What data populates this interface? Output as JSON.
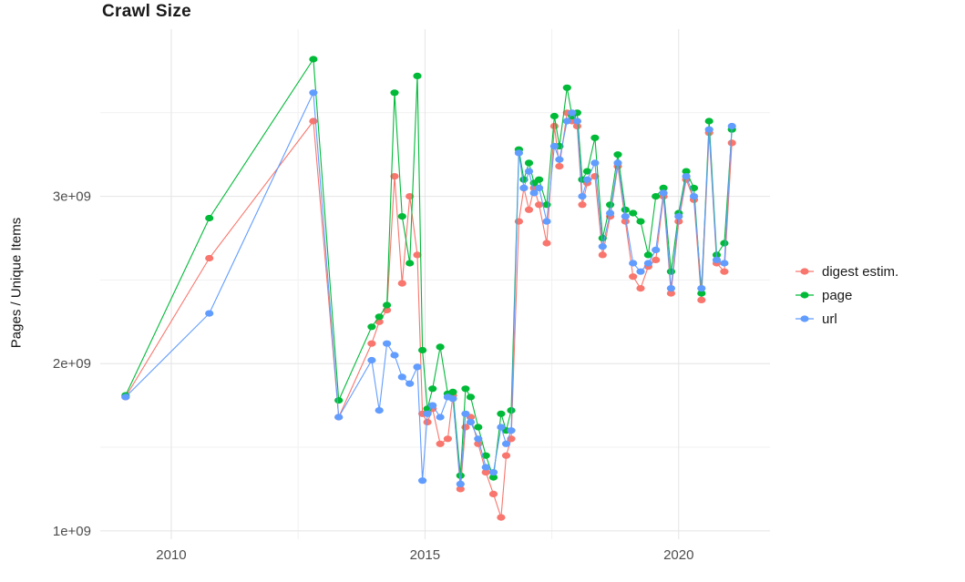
{
  "figure": {
    "background": "#ffffff",
    "panel_background": "#ffffff",
    "grid_major_color": "#e4e4e4",
    "grid_minor_color": "#f1f1f1"
  },
  "chart_data": {
    "type": "line",
    "title": "Crawl Size",
    "xlabel": "",
    "ylabel": "Pages / Unique Items",
    "legend_position": "right",
    "grid": true,
    "xlim": [
      2008.6,
      2021.8
    ],
    "ylim_e9": [
      0.95,
      4.0
    ],
    "xticks": [
      {
        "value": 2010,
        "label": "2010"
      },
      {
        "value": 2015,
        "label": "2015"
      },
      {
        "value": 2020,
        "label": "2020"
      }
    ],
    "yticks": [
      {
        "value_e9": 1,
        "label": "1e+09"
      },
      {
        "value_e9": 2,
        "label": "2e+09"
      },
      {
        "value_e9": 3,
        "label": "3e+09"
      }
    ],
    "x_minor": [
      2012.5,
      2017.5
    ],
    "y_minor_e9": [
      1.5,
      2.5,
      3.5
    ],
    "x": [
      2009.1,
      2010.75,
      2012.8,
      2013.3,
      2013.95,
      2014.1,
      2014.25,
      2014.4,
      2014.55,
      2014.7,
      2014.85,
      2014.95,
      2015.05,
      2015.15,
      2015.3,
      2015.45,
      2015.55,
      2015.7,
      2015.8,
      2015.9,
      2016.05,
      2016.2,
      2016.35,
      2016.5,
      2016.6,
      2016.7,
      2016.85,
      2016.95,
      2017.05,
      2017.15,
      2017.25,
      2017.4,
      2017.55,
      2017.65,
      2017.8,
      2017.9,
      2018.0,
      2018.1,
      2018.2,
      2018.35,
      2018.5,
      2018.65,
      2018.8,
      2018.95,
      2019.1,
      2019.25,
      2019.4,
      2019.55,
      2019.7,
      2019.85,
      2020.0,
      2020.15,
      2020.3,
      2020.45,
      2020.6,
      2020.75,
      2020.9,
      2021.05
    ],
    "series": [
      {
        "name": "digest estim.",
        "color": "#F8766D",
        "values_e9": [
          1.8,
          2.63,
          3.45,
          1.68,
          2.12,
          2.25,
          2.32,
          3.12,
          2.48,
          3.0,
          2.65,
          1.7,
          1.65,
          1.73,
          1.52,
          1.55,
          1.81,
          1.25,
          1.62,
          1.68,
          1.52,
          1.35,
          1.22,
          1.08,
          1.45,
          1.55,
          2.85,
          3.05,
          2.92,
          3.05,
          2.95,
          2.72,
          3.42,
          3.18,
          3.5,
          3.45,
          3.42,
          2.95,
          3.08,
          3.12,
          2.65,
          2.88,
          3.18,
          2.85,
          2.52,
          2.45,
          2.58,
          2.62,
          3.0,
          2.42,
          2.85,
          3.1,
          2.98,
          2.38,
          3.38,
          2.6,
          2.55,
          3.32
        ]
      },
      {
        "name": "page",
        "color": "#00BA38",
        "values_e9": [
          1.81,
          2.87,
          3.82,
          1.78,
          2.22,
          2.28,
          2.35,
          3.62,
          2.88,
          2.6,
          3.72,
          2.08,
          1.73,
          1.85,
          2.1,
          1.82,
          1.83,
          1.33,
          1.85,
          1.8,
          1.62,
          1.45,
          1.32,
          1.7,
          1.6,
          1.72,
          3.28,
          3.1,
          3.2,
          3.08,
          3.1,
          2.95,
          3.48,
          3.3,
          3.65,
          3.48,
          3.5,
          3.1,
          3.15,
          3.35,
          2.75,
          2.95,
          3.25,
          2.92,
          2.9,
          2.85,
          2.65,
          3.0,
          3.05,
          2.55,
          2.9,
          3.15,
          3.05,
          2.42,
          3.45,
          2.65,
          2.72,
          3.4
        ]
      },
      {
        "name": "url",
        "color": "#619CFF",
        "values_e9": [
          1.8,
          2.3,
          3.62,
          1.68,
          2.02,
          1.72,
          2.12,
          2.05,
          1.92,
          1.88,
          1.98,
          1.3,
          1.7,
          1.75,
          1.68,
          1.8,
          1.79,
          1.28,
          1.7,
          1.65,
          1.55,
          1.38,
          1.35,
          1.62,
          1.52,
          1.6,
          3.26,
          3.05,
          3.15,
          3.02,
          3.05,
          2.85,
          3.3,
          3.22,
          3.45,
          3.5,
          3.45,
          3.0,
          3.1,
          3.2,
          2.7,
          2.9,
          3.2,
          2.88,
          2.6,
          2.55,
          2.6,
          2.68,
          3.02,
          2.45,
          2.88,
          3.12,
          3.0,
          2.45,
          3.4,
          2.62,
          2.6,
          3.42
        ]
      }
    ]
  }
}
